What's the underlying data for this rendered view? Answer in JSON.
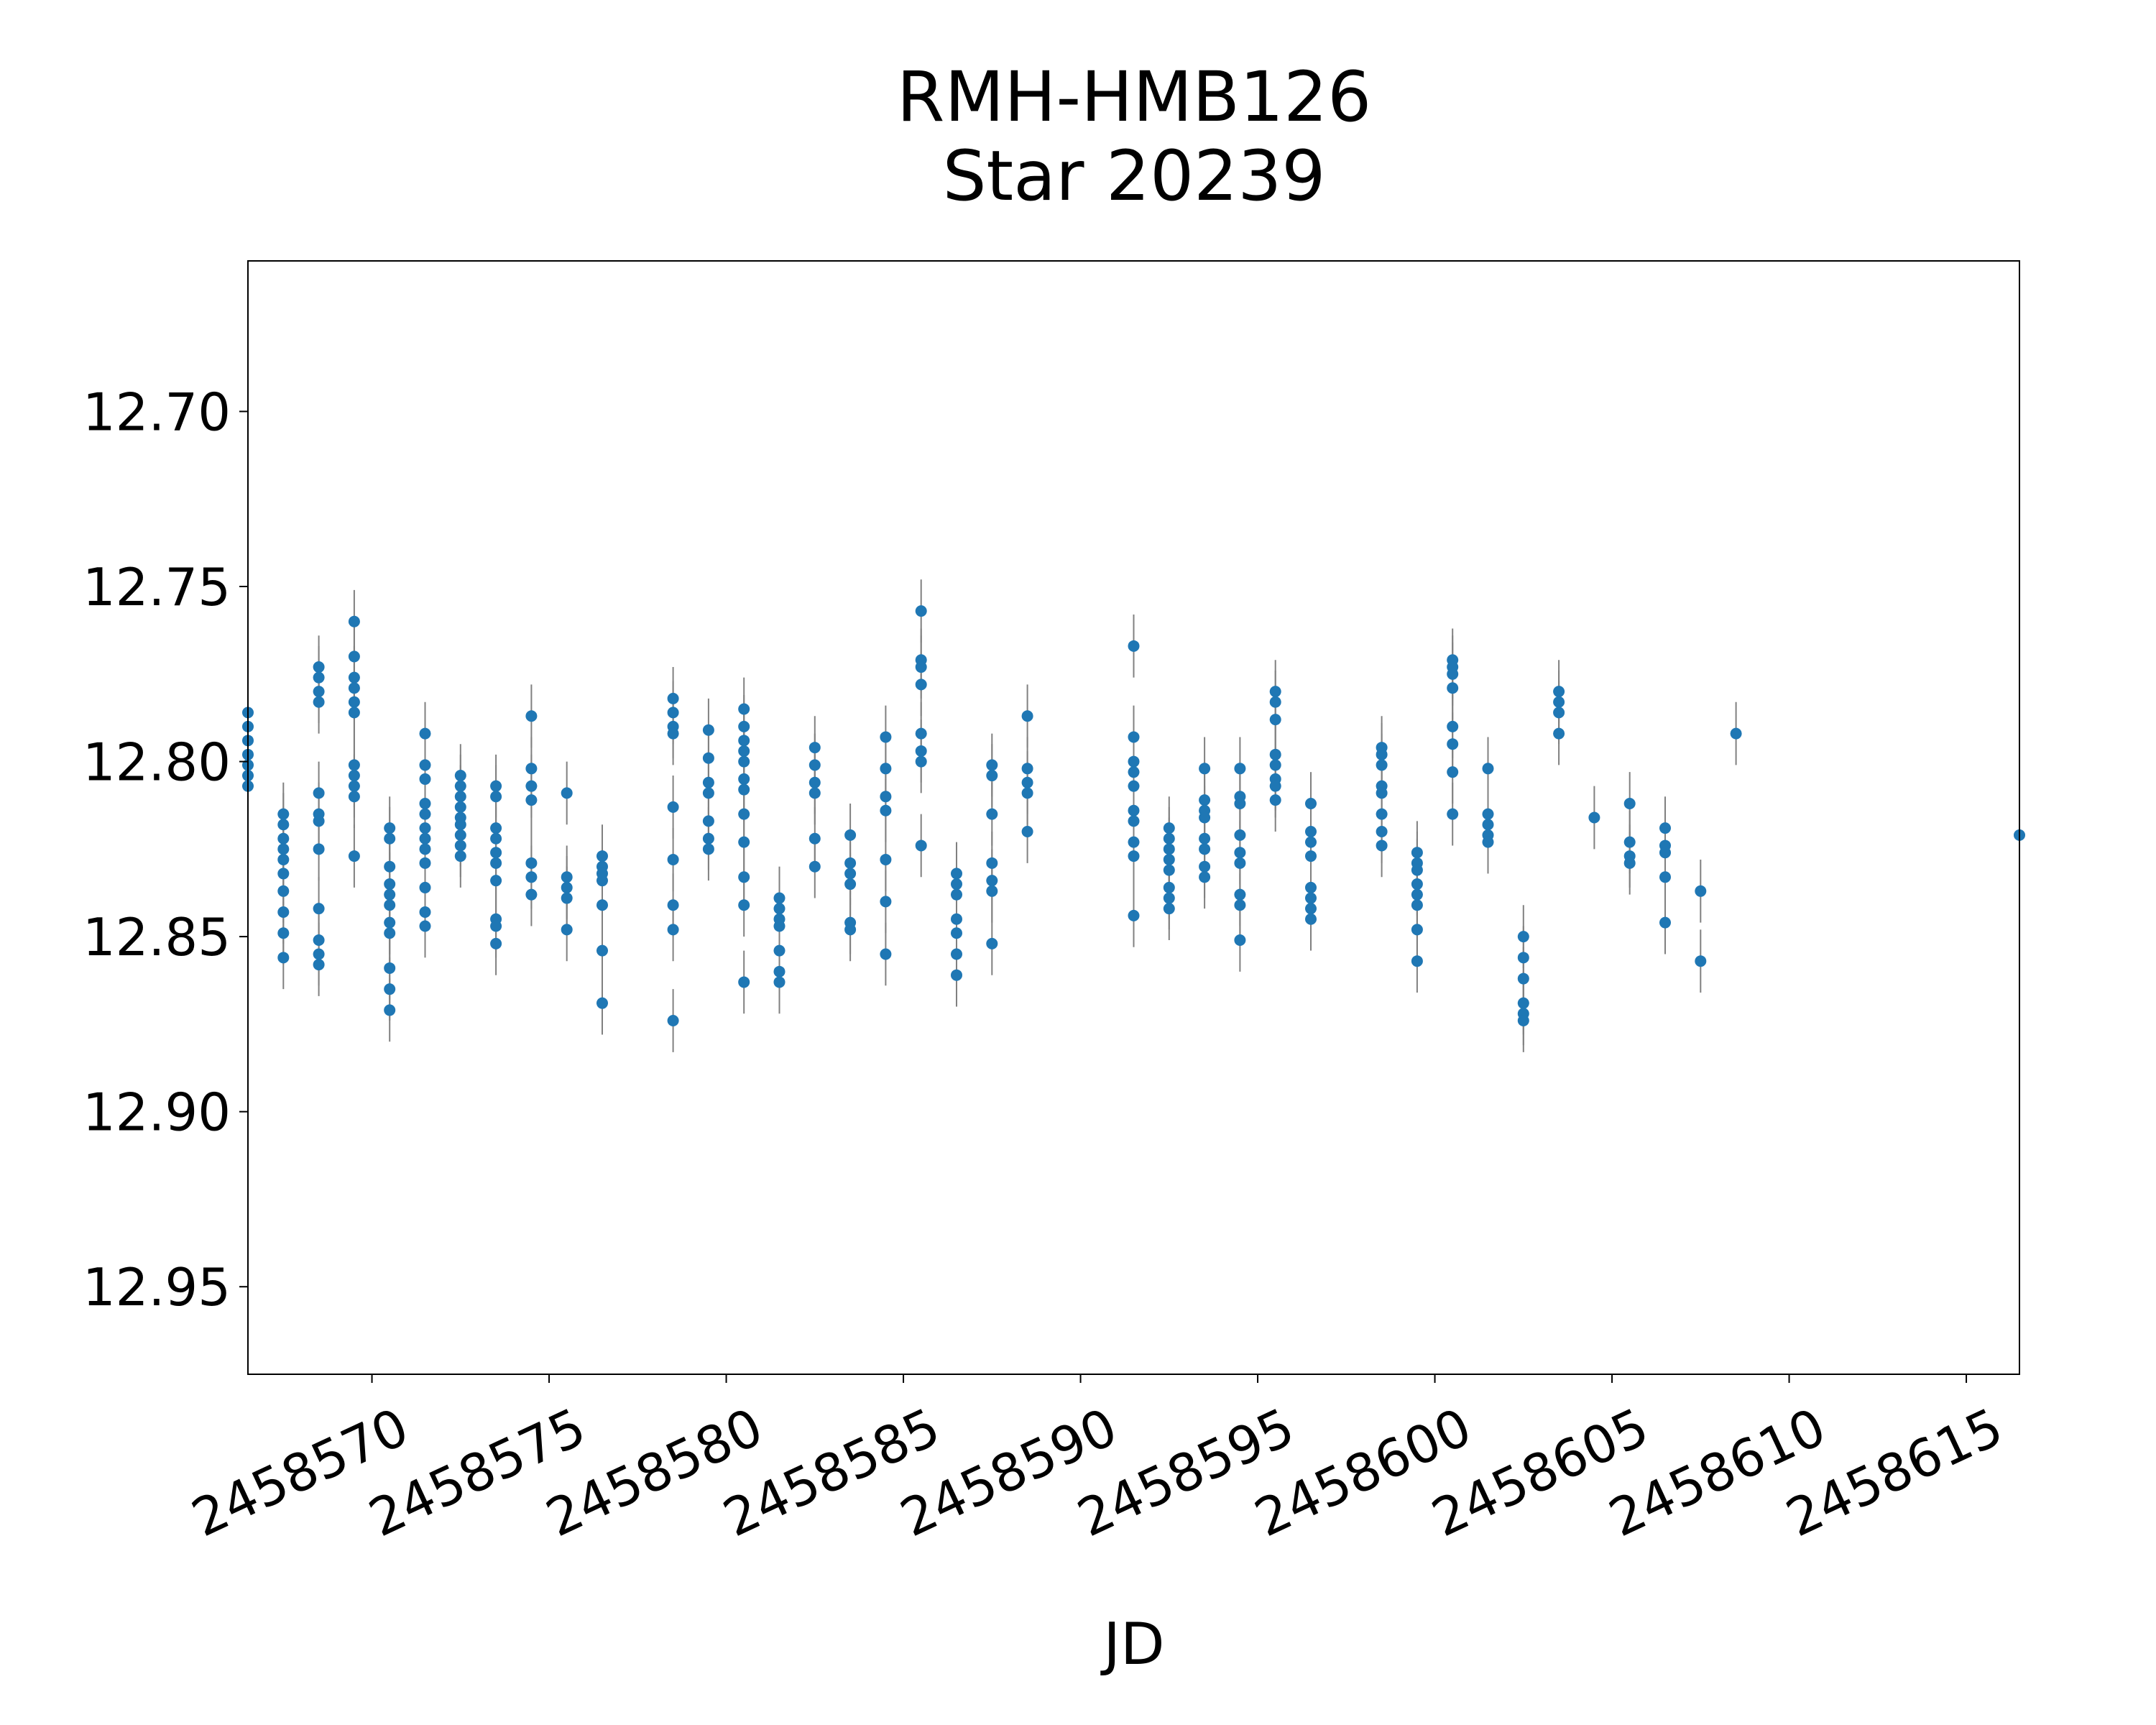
{
  "chart_data": {
    "type": "scatter",
    "title": "RMH-HMB126",
    "subtitle": "Star 20239",
    "xlabel": "JD",
    "ylabel": "",
    "xlim": [
      2458566.5,
      2458616.5
    ],
    "ylim": [
      12.975,
      12.657
    ],
    "y_inverted": true,
    "grid": false,
    "x_ticks": [
      2458570,
      2458575,
      2458580,
      2458585,
      2458590,
      2458595,
      2458600,
      2458605,
      2458610,
      2458615
    ],
    "x_tick_labels": [
      "2458570",
      "2458575",
      "2458580",
      "2458585",
      "2458590",
      "2458595",
      "2458600",
      "2458605",
      "2458610",
      "2458615"
    ],
    "y_ticks": [
      12.7,
      12.75,
      12.8,
      12.85,
      12.9,
      12.95
    ],
    "y_tick_labels": [
      "12.70",
      "12.75",
      "12.80",
      "12.85",
      "12.90",
      "12.95"
    ],
    "marker_color": "#1f77b4",
    "errorbar_color": "#808080",
    "error": 0.009,
    "points": [
      [
        2458566.5,
        12.786
      ],
      [
        2458566.5,
        12.79
      ],
      [
        2458566.5,
        12.794
      ],
      [
        2458566.5,
        12.798
      ],
      [
        2458566.5,
        12.801
      ],
      [
        2458566.5,
        12.804
      ],
      [
        2458566.5,
        12.807
      ],
      [
        2458567.5,
        12.815
      ],
      [
        2458567.5,
        12.818
      ],
      [
        2458567.5,
        12.822
      ],
      [
        2458567.5,
        12.825
      ],
      [
        2458567.5,
        12.828
      ],
      [
        2458567.5,
        12.832
      ],
      [
        2458567.5,
        12.837
      ],
      [
        2458567.5,
        12.843
      ],
      [
        2458567.5,
        12.849
      ],
      [
        2458567.5,
        12.856
      ],
      [
        2458568.5,
        12.773
      ],
      [
        2458568.5,
        12.776
      ],
      [
        2458568.5,
        12.78
      ],
      [
        2458568.5,
        12.783
      ],
      [
        2458568.5,
        12.809
      ],
      [
        2458568.5,
        12.815
      ],
      [
        2458568.5,
        12.817
      ],
      [
        2458568.5,
        12.825
      ],
      [
        2458568.5,
        12.842
      ],
      [
        2458568.5,
        12.851
      ],
      [
        2458568.5,
        12.855
      ],
      [
        2458568.5,
        12.858
      ],
      [
        2458569.5,
        12.76
      ],
      [
        2458569.5,
        12.77
      ],
      [
        2458569.5,
        12.776
      ],
      [
        2458569.5,
        12.779
      ],
      [
        2458569.5,
        12.783
      ],
      [
        2458569.5,
        12.786
      ],
      [
        2458569.5,
        12.801
      ],
      [
        2458569.5,
        12.804
      ],
      [
        2458569.5,
        12.807
      ],
      [
        2458569.5,
        12.81
      ],
      [
        2458569.5,
        12.827
      ],
      [
        2458570.5,
        12.819
      ],
      [
        2458570.5,
        12.822
      ],
      [
        2458570.5,
        12.83
      ],
      [
        2458570.5,
        12.835
      ],
      [
        2458570.5,
        12.838
      ],
      [
        2458570.5,
        12.841
      ],
      [
        2458570.5,
        12.846
      ],
      [
        2458570.5,
        12.849
      ],
      [
        2458570.5,
        12.859
      ],
      [
        2458570.5,
        12.865
      ],
      [
        2458570.5,
        12.871
      ],
      [
        2458571.5,
        12.792
      ],
      [
        2458571.5,
        12.801
      ],
      [
        2458571.5,
        12.805
      ],
      [
        2458571.5,
        12.812
      ],
      [
        2458571.5,
        12.815
      ],
      [
        2458571.5,
        12.819
      ],
      [
        2458571.5,
        12.822
      ],
      [
        2458571.5,
        12.825
      ],
      [
        2458571.5,
        12.829
      ],
      [
        2458571.5,
        12.836
      ],
      [
        2458571.5,
        12.843
      ],
      [
        2458571.5,
        12.847
      ],
      [
        2458572.5,
        12.804
      ],
      [
        2458572.5,
        12.807
      ],
      [
        2458572.5,
        12.81
      ],
      [
        2458572.5,
        12.813
      ],
      [
        2458572.5,
        12.816
      ],
      [
        2458572.5,
        12.818
      ],
      [
        2458572.5,
        12.821
      ],
      [
        2458572.5,
        12.824
      ],
      [
        2458572.5,
        12.827
      ],
      [
        2458573.5,
        12.807
      ],
      [
        2458573.5,
        12.81
      ],
      [
        2458573.5,
        12.819
      ],
      [
        2458573.5,
        12.822
      ],
      [
        2458573.5,
        12.826
      ],
      [
        2458573.5,
        12.829
      ],
      [
        2458573.5,
        12.834
      ],
      [
        2458573.5,
        12.845
      ],
      [
        2458573.5,
        12.847
      ],
      [
        2458573.5,
        12.852
      ],
      [
        2458574.5,
        12.787
      ],
      [
        2458574.5,
        12.802
      ],
      [
        2458574.5,
        12.807
      ],
      [
        2458574.5,
        12.811
      ],
      [
        2458574.5,
        12.829
      ],
      [
        2458574.5,
        12.833
      ],
      [
        2458574.5,
        12.838
      ],
      [
        2458575.5,
        12.809
      ],
      [
        2458575.5,
        12.833
      ],
      [
        2458575.5,
        12.836
      ],
      [
        2458575.5,
        12.839
      ],
      [
        2458575.5,
        12.848
      ],
      [
        2458576.5,
        12.827
      ],
      [
        2458576.5,
        12.83
      ],
      [
        2458576.5,
        12.832
      ],
      [
        2458576.5,
        12.834
      ],
      [
        2458576.5,
        12.841
      ],
      [
        2458576.5,
        12.854
      ],
      [
        2458576.5,
        12.869
      ],
      [
        2458578.5,
        12.782
      ],
      [
        2458578.5,
        12.786
      ],
      [
        2458578.5,
        12.79
      ],
      [
        2458578.5,
        12.792
      ],
      [
        2458578.5,
        12.813
      ],
      [
        2458578.5,
        12.828
      ],
      [
        2458578.5,
        12.841
      ],
      [
        2458578.5,
        12.848
      ],
      [
        2458578.5,
        12.874
      ],
      [
        2458579.5,
        12.791
      ],
      [
        2458579.5,
        12.799
      ],
      [
        2458579.5,
        12.806
      ],
      [
        2458579.5,
        12.809
      ],
      [
        2458579.5,
        12.817
      ],
      [
        2458579.5,
        12.822
      ],
      [
        2458579.5,
        12.825
      ],
      [
        2458580.5,
        12.785
      ],
      [
        2458580.5,
        12.79
      ],
      [
        2458580.5,
        12.794
      ],
      [
        2458580.5,
        12.797
      ],
      [
        2458580.5,
        12.8
      ],
      [
        2458580.5,
        12.805
      ],
      [
        2458580.5,
        12.808
      ],
      [
        2458580.5,
        12.815
      ],
      [
        2458580.5,
        12.823
      ],
      [
        2458580.5,
        12.833
      ],
      [
        2458580.5,
        12.841
      ],
      [
        2458580.5,
        12.863
      ],
      [
        2458581.5,
        12.839
      ],
      [
        2458581.5,
        12.842
      ],
      [
        2458581.5,
        12.845
      ],
      [
        2458581.5,
        12.847
      ],
      [
        2458581.5,
        12.854
      ],
      [
        2458581.5,
        12.86
      ],
      [
        2458581.5,
        12.863
      ],
      [
        2458582.5,
        12.796
      ],
      [
        2458582.5,
        12.801
      ],
      [
        2458582.5,
        12.806
      ],
      [
        2458582.5,
        12.809
      ],
      [
        2458582.5,
        12.822
      ],
      [
        2458582.5,
        12.83
      ],
      [
        2458583.5,
        12.821
      ],
      [
        2458583.5,
        12.829
      ],
      [
        2458583.5,
        12.832
      ],
      [
        2458583.5,
        12.835
      ],
      [
        2458583.5,
        12.846
      ],
      [
        2458583.5,
        12.848
      ],
      [
        2458584.5,
        12.793
      ],
      [
        2458584.5,
        12.802
      ],
      [
        2458584.5,
        12.81
      ],
      [
        2458584.5,
        12.814
      ],
      [
        2458584.5,
        12.828
      ],
      [
        2458584.5,
        12.84
      ],
      [
        2458584.5,
        12.855
      ],
      [
        2458585.5,
        12.757
      ],
      [
        2458585.5,
        12.771
      ],
      [
        2458585.5,
        12.773
      ],
      [
        2458585.5,
        12.778
      ],
      [
        2458585.5,
        12.792
      ],
      [
        2458585.5,
        12.797
      ],
      [
        2458585.5,
        12.8
      ],
      [
        2458585.5,
        12.824
      ],
      [
        2458586.5,
        12.832
      ],
      [
        2458586.5,
        12.835
      ],
      [
        2458586.5,
        12.838
      ],
      [
        2458586.5,
        12.845
      ],
      [
        2458586.5,
        12.849
      ],
      [
        2458586.5,
        12.855
      ],
      [
        2458586.5,
        12.861
      ],
      [
        2458587.5,
        12.801
      ],
      [
        2458587.5,
        12.804
      ],
      [
        2458587.5,
        12.815
      ],
      [
        2458587.5,
        12.829
      ],
      [
        2458587.5,
        12.834
      ],
      [
        2458587.5,
        12.837
      ],
      [
        2458587.5,
        12.852
      ],
      [
        2458588.5,
        12.787
      ],
      [
        2458588.5,
        12.802
      ],
      [
        2458588.5,
        12.806
      ],
      [
        2458588.5,
        12.809
      ],
      [
        2458588.5,
        12.82
      ],
      [
        2458591.5,
        12.767
      ],
      [
        2458591.5,
        12.793
      ],
      [
        2458591.5,
        12.8
      ],
      [
        2458591.5,
        12.803
      ],
      [
        2458591.5,
        12.807
      ],
      [
        2458591.5,
        12.814
      ],
      [
        2458591.5,
        12.817
      ],
      [
        2458591.5,
        12.823
      ],
      [
        2458591.5,
        12.827
      ],
      [
        2458591.5,
        12.844
      ],
      [
        2458592.5,
        12.819
      ],
      [
        2458592.5,
        12.822
      ],
      [
        2458592.5,
        12.825
      ],
      [
        2458592.5,
        12.828
      ],
      [
        2458592.5,
        12.831
      ],
      [
        2458592.5,
        12.836
      ],
      [
        2458592.5,
        12.839
      ],
      [
        2458592.5,
        12.842
      ],
      [
        2458593.5,
        12.802
      ],
      [
        2458593.5,
        12.811
      ],
      [
        2458593.5,
        12.814
      ],
      [
        2458593.5,
        12.816
      ],
      [
        2458593.5,
        12.822
      ],
      [
        2458593.5,
        12.825
      ],
      [
        2458593.5,
        12.83
      ],
      [
        2458593.5,
        12.833
      ],
      [
        2458594.5,
        12.802
      ],
      [
        2458594.5,
        12.81
      ],
      [
        2458594.5,
        12.812
      ],
      [
        2458594.5,
        12.821
      ],
      [
        2458594.5,
        12.826
      ],
      [
        2458594.5,
        12.829
      ],
      [
        2458594.5,
        12.838
      ],
      [
        2458594.5,
        12.841
      ],
      [
        2458594.5,
        12.851
      ],
      [
        2458595.5,
        12.78
      ],
      [
        2458595.5,
        12.783
      ],
      [
        2458595.5,
        12.788
      ],
      [
        2458595.5,
        12.798
      ],
      [
        2458595.5,
        12.801
      ],
      [
        2458595.5,
        12.805
      ],
      [
        2458595.5,
        12.807
      ],
      [
        2458595.5,
        12.811
      ],
      [
        2458596.5,
        12.812
      ],
      [
        2458596.5,
        12.82
      ],
      [
        2458596.5,
        12.823
      ],
      [
        2458596.5,
        12.827
      ],
      [
        2458596.5,
        12.836
      ],
      [
        2458596.5,
        12.839
      ],
      [
        2458596.5,
        12.842
      ],
      [
        2458596.5,
        12.845
      ],
      [
        2458598.5,
        12.796
      ],
      [
        2458598.5,
        12.798
      ],
      [
        2458598.5,
        12.801
      ],
      [
        2458598.5,
        12.807
      ],
      [
        2458598.5,
        12.809
      ],
      [
        2458598.5,
        12.815
      ],
      [
        2458598.5,
        12.82
      ],
      [
        2458598.5,
        12.824
      ],
      [
        2458599.5,
        12.826
      ],
      [
        2458599.5,
        12.829
      ],
      [
        2458599.5,
        12.831
      ],
      [
        2458599.5,
        12.835
      ],
      [
        2458599.5,
        12.838
      ],
      [
        2458599.5,
        12.841
      ],
      [
        2458599.5,
        12.848
      ],
      [
        2458599.5,
        12.857
      ],
      [
        2458600.5,
        12.771
      ],
      [
        2458600.5,
        12.773
      ],
      [
        2458600.5,
        12.775
      ],
      [
        2458600.5,
        12.779
      ],
      [
        2458600.5,
        12.79
      ],
      [
        2458600.5,
        12.795
      ],
      [
        2458600.5,
        12.803
      ],
      [
        2458600.5,
        12.815
      ],
      [
        2458601.5,
        12.802
      ],
      [
        2458601.5,
        12.815
      ],
      [
        2458601.5,
        12.818
      ],
      [
        2458601.5,
        12.821
      ],
      [
        2458601.5,
        12.823
      ],
      [
        2458602.5,
        12.85
      ],
      [
        2458602.5,
        12.856
      ],
      [
        2458602.5,
        12.862
      ],
      [
        2458602.5,
        12.869
      ],
      [
        2458602.5,
        12.872
      ],
      [
        2458602.5,
        12.874
      ],
      [
        2458603.5,
        12.78
      ],
      [
        2458603.5,
        12.783
      ],
      [
        2458603.5,
        12.786
      ],
      [
        2458603.5,
        12.792
      ],
      [
        2458604.5,
        12.816
      ],
      [
        2458605.5,
        12.812
      ],
      [
        2458605.5,
        12.823
      ],
      [
        2458605.5,
        12.827
      ],
      [
        2458605.5,
        12.829
      ],
      [
        2458606.5,
        12.819
      ],
      [
        2458606.5,
        12.824
      ],
      [
        2458606.5,
        12.826
      ],
      [
        2458606.5,
        12.833
      ],
      [
        2458606.5,
        12.846
      ],
      [
        2458607.5,
        12.837
      ],
      [
        2458607.5,
        12.857
      ],
      [
        2458608.5,
        12.792
      ],
      [
        2458616.5,
        12.821
      ]
    ]
  }
}
